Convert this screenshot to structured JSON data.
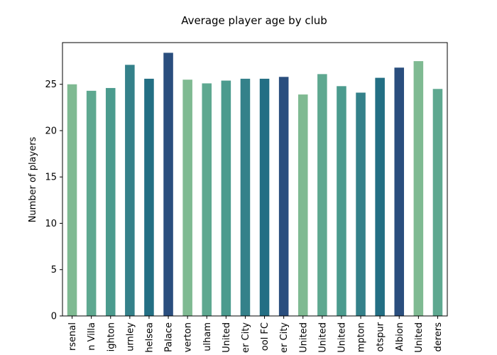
{
  "chart_data": {
    "type": "bar",
    "title": "Average player age by club",
    "xlabel": "",
    "ylabel": "Number of players",
    "ylim": [
      0,
      29.5
    ],
    "yticks": [
      0,
      5,
      10,
      15,
      20,
      25
    ],
    "grid": false,
    "legend": "none",
    "categories": [
      "Arsenal",
      "Aston Villa",
      "Brighton",
      "Burnley",
      "Chelsea",
      "Crystal Palace",
      "Everton",
      "Fulham",
      "Leeds United",
      "Leicester City",
      "Liverpool FC",
      "Manchester City",
      "Manchester United",
      "Newcastle United",
      "Sheffield United",
      "Southampton",
      "Tottenham Hotspur",
      "West Bromwich Albion",
      "West Ham United",
      "Wolverhampton Wanderers"
    ],
    "visible_tick_labels": [
      "rsenal",
      "n Villa",
      "ighton",
      "urnley",
      "helsea",
      "Palace",
      "verton",
      "ulham",
      "United",
      "er City",
      "ool FC",
      "er City",
      "United",
      "United",
      "United",
      "mpton",
      "otspur",
      "Albion",
      "United",
      "derers"
    ],
    "values": [
      25.0,
      24.3,
      24.6,
      27.1,
      25.6,
      28.4,
      25.5,
      25.1,
      25.4,
      25.6,
      25.6,
      25.8,
      23.9,
      26.1,
      24.8,
      24.1,
      25.7,
      26.8,
      27.5,
      24.5
    ],
    "colors": [
      "#7fba92",
      "#5ea890",
      "#4b9b8e",
      "#34818a",
      "#236f84",
      "#2a4e7e",
      "#7fba92",
      "#5ea890",
      "#4b9b8e",
      "#34818a",
      "#236f84",
      "#2a4e7e",
      "#7fba92",
      "#5ea890",
      "#4b9b8e",
      "#34818a",
      "#236f84",
      "#2a4e7e",
      "#7fba92",
      "#5ea890"
    ]
  }
}
